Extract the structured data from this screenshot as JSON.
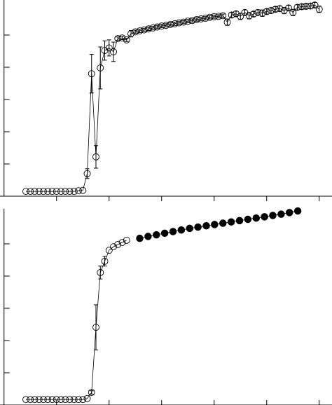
{
  "chart_data": [
    {
      "type": "line",
      "xlim": [
        -4,
        70
      ],
      "xticks": [
        8,
        20,
        32,
        44,
        56,
        68
      ],
      "ylim": [
        0,
        6
      ],
      "yticks": [
        1,
        2,
        3,
        4,
        5
      ],
      "series": [
        {
          "color": "#000000",
          "marker": "open",
          "x": [
            1,
            2,
            3,
            4,
            5,
            6,
            7,
            8,
            9,
            10,
            11,
            12,
            13,
            14,
            15,
            16,
            17,
            18,
            19,
            20,
            21,
            22,
            23,
            24,
            25,
            26,
            27,
            28,
            29,
            30,
            31,
            32,
            33,
            34,
            35,
            36,
            37,
            38,
            39,
            40,
            41,
            42,
            43,
            44,
            45,
            46,
            47,
            48,
            49,
            50,
            51,
            52,
            53,
            54,
            55,
            56,
            57,
            58,
            59,
            60,
            61,
            62,
            63,
            64,
            65,
            66,
            67,
            68
          ],
          "values": [
            0.15,
            0.15,
            0.15,
            0.15,
            0.15,
            0.15,
            0.15,
            0.15,
            0.15,
            0.15,
            0.15,
            0.15,
            0.17,
            0.18,
            0.7,
            3.8,
            1.22,
            3.98,
            4.52,
            4.6,
            4.48,
            4.89,
            4.91,
            4.85,
            5.04,
            5.1,
            5.13,
            5.16,
            5.19,
            5.22,
            5.25,
            5.28,
            5.3,
            5.33,
            5.35,
            5.38,
            5.4,
            5.43,
            5.45,
            5.48,
            5.5,
            5.52,
            5.55,
            5.57,
            5.58,
            5.6,
            5.4,
            5.62,
            5.66,
            5.58,
            5.7,
            5.6,
            5.65,
            5.7,
            5.68,
            5.73,
            5.76,
            5.8,
            5.82,
            5.76,
            5.84,
            5.7,
            5.86,
            5.88,
            5.89,
            5.9,
            5.93,
            5.8
          ],
          "errors": [
            0,
            0,
            0,
            0,
            0,
            0,
            0,
            0,
            0,
            0,
            0,
            0,
            0,
            0,
            0.15,
            0.6,
            0.35,
            0.65,
            0.3,
            0.25,
            0.3,
            0.05,
            0.05,
            0.05,
            0.1,
            0.05,
            0.05,
            0.05,
            0.05,
            0.05,
            0.05,
            0.05,
            0.05,
            0.05,
            0.05,
            0.05,
            0.05,
            0.05,
            0.05,
            0.05,
            0.05,
            0.05,
            0.05,
            0.05,
            0.05,
            0.05,
            0.1,
            0.08,
            0.08,
            0.1,
            0.08,
            0.1,
            0.08,
            0.08,
            0.1,
            0.08,
            0.08,
            0.08,
            0.08,
            0.1,
            0.08,
            0.1,
            0.08,
            0.08,
            0.08,
            0.08,
            0.08,
            0.1
          ]
        }
      ]
    },
    {
      "type": "line",
      "xlim": [
        -4,
        70
      ],
      "xticks": [
        8,
        20,
        32,
        44,
        56,
        68
      ],
      "ylim": [
        0,
        6
      ],
      "yticks": [
        1,
        2,
        3,
        4,
        5
      ],
      "series": [
        {
          "color": "#000000",
          "marker": "open",
          "x": [
            1,
            2,
            3,
            4,
            5,
            6,
            7,
            8,
            9,
            10,
            11,
            12,
            13,
            14,
            15,
            16,
            17,
            18,
            19,
            20,
            21,
            22,
            23,
            24
          ],
          "values": [
            0.17,
            0.17,
            0.17,
            0.17,
            0.17,
            0.17,
            0.17,
            0.17,
            0.17,
            0.17,
            0.17,
            0.17,
            0.17,
            0.17,
            0.2,
            0.39,
            2.41,
            4.11,
            4.46,
            4.8,
            4.91,
            4.98,
            5.04,
            5.11
          ],
          "errors": [
            0,
            0,
            0,
            0,
            0,
            0,
            0,
            0,
            0,
            0,
            0,
            0,
            0,
            0,
            0,
            0.05,
            0.7,
            0.2,
            0.15,
            0,
            0,
            0,
            0,
            0
          ]
        },
        {
          "color": "#000000",
          "marker": "filled",
          "x": [
            27,
            28.9,
            30.8,
            32.7,
            34.6,
            36.5,
            38.4,
            40.3,
            42.2,
            44.1,
            46,
            47.9,
            49.8,
            51.7,
            53.6,
            55.5,
            57.4,
            59.3,
            61.2,
            63.1
          ],
          "values": [
            5.17,
            5.23,
            5.28,
            5.33,
            5.38,
            5.43,
            5.48,
            5.52,
            5.56,
            5.6,
            5.64,
            5.68,
            5.72,
            5.76,
            5.8,
            5.84,
            5.88,
            5.92,
            5.97,
            6.02
          ]
        }
      ]
    }
  ]
}
